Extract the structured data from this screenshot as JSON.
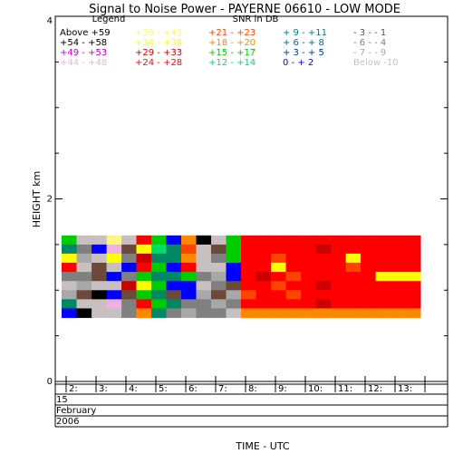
{
  "chart_data": {
    "type": "heatmap",
    "title": "Signal to Noise Power - PAYERNE 06610 - LOW MODE",
    "legend_title": "Legend",
    "snr_title": "SNR in DB",
    "ylabel": "HEIGHT km",
    "xlabel": "TIME - UTC",
    "ylim": [
      0,
      4
    ],
    "y_ticks": [
      "0",
      "2",
      "4"
    ],
    "x_ticks": [
      "2:",
      "3:",
      "4:",
      "5:",
      "6:",
      "7:",
      "8:",
      "9:",
      "10:",
      "11:",
      "12:",
      "13:"
    ],
    "date_rows": [
      "15",
      "February",
      "2006"
    ],
    "legend": [
      {
        "label": "Above +59",
        "color": "#000000"
      },
      {
        "label": "+54 - +58",
        "color": "#000000"
      },
      {
        "label": "+49 - +53",
        "color": "#cc00cc"
      },
      {
        "label": "+44 - +48",
        "color": "#f0b0e0"
      },
      {
        "label": "+39 - +43",
        "color": "#f8f880"
      },
      {
        "label": "+34 - +38",
        "color": "#ffff00"
      },
      {
        "label": "+29 - +33",
        "color": "#cc0000"
      },
      {
        "label": "+24 - +28",
        "color": "#ff0000"
      },
      {
        "label": "+21 - +23",
        "color": "#ff4400"
      },
      {
        "label": "+18 - +20",
        "color": "#ff8800"
      },
      {
        "label": "+15 - +17",
        "color": "#00cc00"
      },
      {
        "label": "+12 - +14",
        "color": "#00dd66"
      },
      {
        "label": "+ 9 - +11",
        "color": "#008866"
      },
      {
        "label": "+ 6 - + 8",
        "color": "#006699"
      },
      {
        "label": "+ 3 - + 5",
        "color": "#003399"
      },
      {
        "label": "0 - + 2",
        "color": "#0000ff"
      },
      {
        "label": "- 3 - - 1",
        "color": "#6b4a3a"
      },
      {
        "label": "- 6 - - 4",
        "color": "#808080"
      },
      {
        "label": "- 7 - - 9",
        "color": "#a8a8a8"
      },
      {
        "label": "Below -10",
        "color": "#c8c0c0"
      }
    ],
    "heights_km": [
      1.55,
      1.45,
      1.35,
      1.25,
      1.15,
      1.05,
      0.95,
      0.85,
      0.75
    ],
    "time_cols": [
      1.6,
      2.1,
      2.6,
      3.1,
      3.6,
      4.1,
      4.6,
      5.1,
      5.6,
      6.1,
      6.6,
      7.1,
      7.6,
      8.1,
      8.6,
      9.1,
      9.6,
      10.1,
      10.6,
      11.1,
      11.6,
      12.1,
      12.6,
      13.1
    ],
    "cells": [
      [
        "#00cc00",
        "#c8c0c0",
        "#c8c0c0",
        "#f8f880",
        "#c8c0c0",
        "#ff0000",
        "#00cc00",
        "#0000ff",
        "#ff8800",
        "#000000",
        "#c8c0c0",
        "#00cc00",
        "#ff0000",
        "#ff0000",
        "#ff0000",
        "#ff0000",
        "#ff0000",
        "#ff0000",
        "#ff0000",
        "#ff0000",
        "#ff0000",
        "#ff0000",
        "#ff0000",
        "#ff0000"
      ],
      [
        "#008866",
        "#808080",
        "#0000ff",
        "#f0b0e0",
        "#6b4a3a",
        "#ffff00",
        "#00dd66",
        "#008866",
        "#ff4400",
        "#c8c0c0",
        "#6b4a3a",
        "#00cc00",
        "#ff0000",
        "#ff0000",
        "#ff0000",
        "#ff0000",
        "#ff0000",
        "#cc0000",
        "#ff0000",
        "#ff0000",
        "#ff0000",
        "#ff0000",
        "#ff0000",
        "#ff0000"
      ],
      [
        "#ffff00",
        "#a8a8a8",
        "#c8c0c0",
        "#ffff00",
        "#808080",
        "#cc0000",
        "#008866",
        "#008866",
        "#ff8800",
        "#c8c0c0",
        "#808080",
        "#00cc00",
        "#ff0000",
        "#ff0000",
        "#ff4400",
        "#ff0000",
        "#ff0000",
        "#ff0000",
        "#ff0000",
        "#ffff00",
        "#ff0000",
        "#ff0000",
        "#ff0000",
        "#ff0000"
      ],
      [
        "#ff0000",
        "#c8c0c0",
        "#6b4a3a",
        "#c8c0c0",
        "#0000ff",
        "#ff0000",
        "#00cc00",
        "#0000ff",
        "#ff0000",
        "#c8c0c0",
        "#c8c0c0",
        "#0000ff",
        "#ff0000",
        "#ff0000",
        "#ffff00",
        "#ff0000",
        "#ff0000",
        "#ff0000",
        "#ff0000",
        "#ff4400",
        "#ff0000",
        "#ff0000",
        "#ff0000",
        "#ff0000"
      ],
      [
        "#808080",
        "#808080",
        "#6b4a3a",
        "#0000ff",
        "#808080",
        "#00cc00",
        "#008866",
        "#008866",
        "#00cc00",
        "#808080",
        "#a8a8a8",
        "#0000ff",
        "#ff0000",
        "#cc0000",
        "#ff0000",
        "#ff4400",
        "#ff0000",
        "#ff0000",
        "#ff0000",
        "#ff0000",
        "#ff0000",
        "#ffff00",
        "#ffff00",
        "#ffff00"
      ],
      [
        "#c8c0c0",
        "#a8a8a8",
        "#c8c0c0",
        "#c8c0c0",
        "#cc0000",
        "#ffff00",
        "#00cc00",
        "#0000ff",
        "#0000ff",
        "#c8c0c0",
        "#808080",
        "#6b4a3a",
        "#ff0000",
        "#ff0000",
        "#ff4400",
        "#ff0000",
        "#ff0000",
        "#cc0000",
        "#ff0000",
        "#ff0000",
        "#ff0000",
        "#ff0000",
        "#ff0000",
        "#ff0000"
      ],
      [
        "#a8a8a8",
        "#6b4a3a",
        "#000000",
        "#0000ff",
        "#6b4a3a",
        "#00cc00",
        "#008866",
        "#6b4a3a",
        "#0000ff",
        "#a8a8a8",
        "#6b4a3a",
        "#a8a8a8",
        "#ff4400",
        "#ff0000",
        "#ff0000",
        "#ff4400",
        "#ff0000",
        "#ff0000",
        "#ff0000",
        "#ff0000",
        "#ff0000",
        "#ff0000",
        "#ff0000",
        "#ff0000"
      ],
      [
        "#008866",
        "#c8c0c0",
        "#c8c0c0",
        "#f0b0e0",
        "#808080",
        "#ff0000",
        "#00cc00",
        "#008866",
        "#808080",
        "#808080",
        "#a8a8a8",
        "#808080",
        "#ff0000",
        "#ff0000",
        "#ff0000",
        "#ff0000",
        "#ff0000",
        "#cc0000",
        "#ff0000",
        "#ff0000",
        "#ff0000",
        "#ff0000",
        "#ff0000",
        "#ff0000"
      ],
      [
        "#0000ff",
        "#000000",
        "#c8c0c0",
        "#c8c0c0",
        "#808080",
        "#ff8800",
        "#008866",
        "#808080",
        "#a8a8a8",
        "#808080",
        "#808080",
        "#c8c0c0",
        "#ff8800",
        "#ff8800",
        "#ff8800",
        "#ff8800",
        "#ff8800",
        "#ff8800",
        "#ff8800",
        "#ff8800",
        "#ff8800",
        "#ff8800",
        "#ff8800",
        "#ff8800"
      ]
    ]
  }
}
